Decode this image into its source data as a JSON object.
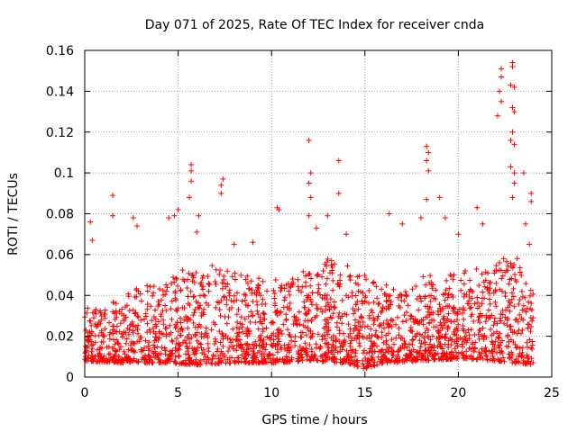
{
  "chart_data": {
    "type": "scatter",
    "title": "Day 071 of 2025, Rate Of TEC Index for receiver cnda",
    "xlabel": "GPS time / hours",
    "ylabel": "ROTI / TECUs",
    "xlim": [
      0,
      25
    ],
    "ylim": [
      0,
      0.16
    ],
    "x_ticks": [
      0,
      5,
      10,
      15,
      20,
      25
    ],
    "x_tick_labels": [
      "0",
      "5",
      "10",
      "15",
      "20",
      "25"
    ],
    "y_ticks": [
      0,
      0.02,
      0.04,
      0.06,
      0.08,
      0.1,
      0.12,
      0.14,
      0.16
    ],
    "y_tick_labels": [
      "0",
      "0.02",
      "0.04",
      "0.06",
      "0.08",
      "0.1",
      "0.12",
      "0.14",
      "0.16"
    ],
    "grid": true,
    "marker": "+",
    "series": [
      {
        "name": "ROTI",
        "color": "#ff0000",
        "note": "dense band of thousands of samples between 0 and 24 h; representative envelope and outliers listed",
        "band_lower": [
          [
            0,
            0.008
          ],
          [
            2,
            0.007
          ],
          [
            4,
            0.007
          ],
          [
            6,
            0.006
          ],
          [
            8,
            0.007
          ],
          [
            10,
            0.007
          ],
          [
            12,
            0.008
          ],
          [
            14,
            0.007
          ],
          [
            15,
            0.004
          ],
          [
            16,
            0.007
          ],
          [
            18,
            0.008
          ],
          [
            20,
            0.009
          ],
          [
            22,
            0.008
          ],
          [
            24,
            0.006
          ]
        ],
        "band_upper": [
          [
            0,
            0.035
          ],
          [
            1,
            0.033
          ],
          [
            2,
            0.04
          ],
          [
            3,
            0.045
          ],
          [
            4,
            0.048
          ],
          [
            5,
            0.052
          ],
          [
            6,
            0.055
          ],
          [
            7,
            0.056
          ],
          [
            8,
            0.052
          ],
          [
            9,
            0.05
          ],
          [
            10,
            0.048
          ],
          [
            11,
            0.05
          ],
          [
            12,
            0.055
          ],
          [
            13,
            0.058
          ],
          [
            14,
            0.055
          ],
          [
            15,
            0.05
          ],
          [
            16,
            0.046
          ],
          [
            17,
            0.04
          ],
          [
            18,
            0.052
          ],
          [
            19,
            0.05
          ],
          [
            20,
            0.052
          ],
          [
            21,
            0.055
          ],
          [
            22,
            0.058
          ],
          [
            23,
            0.062
          ],
          [
            24,
            0.045
          ]
        ],
        "outliers": [
          [
            0.3,
            0.076
          ],
          [
            0.4,
            0.067
          ],
          [
            1.5,
            0.089
          ],
          [
            1.5,
            0.079
          ],
          [
            2.6,
            0.078
          ],
          [
            2.8,
            0.074
          ],
          [
            4.5,
            0.078
          ],
          [
            4.8,
            0.079
          ],
          [
            5.0,
            0.082
          ],
          [
            5.7,
            0.104
          ],
          [
            5.7,
            0.101
          ],
          [
            5.7,
            0.096
          ],
          [
            5.6,
            0.088
          ],
          [
            6.1,
            0.079
          ],
          [
            6.0,
            0.071
          ],
          [
            7.4,
            0.097
          ],
          [
            7.3,
            0.094
          ],
          [
            7.3,
            0.09
          ],
          [
            8.0,
            0.065
          ],
          [
            9.0,
            0.066
          ],
          [
            10.3,
            0.083
          ],
          [
            10.4,
            0.082
          ],
          [
            12.0,
            0.116
          ],
          [
            12.1,
            0.1
          ],
          [
            12.0,
            0.095
          ],
          [
            12.1,
            0.088
          ],
          [
            12.0,
            0.079
          ],
          [
            12.4,
            0.073
          ],
          [
            13.0,
            0.079
          ],
          [
            13.6,
            0.106
          ],
          [
            13.6,
            0.09
          ],
          [
            14.0,
            0.07
          ],
          [
            16.3,
            0.08
          ],
          [
            17.0,
            0.075
          ],
          [
            18.3,
            0.113
          ],
          [
            18.4,
            0.11
          ],
          [
            18.3,
            0.106
          ],
          [
            18.4,
            0.101
          ],
          [
            18.3,
            0.087
          ],
          [
            18.0,
            0.078
          ],
          [
            19.0,
            0.088
          ],
          [
            19.3,
            0.078
          ],
          [
            20.0,
            0.07
          ],
          [
            21.0,
            0.083
          ],
          [
            21.3,
            0.075
          ],
          [
            22.3,
            0.151
          ],
          [
            22.3,
            0.147
          ],
          [
            22.2,
            0.14
          ],
          [
            22.3,
            0.135
          ],
          [
            22.1,
            0.128
          ],
          [
            22.9,
            0.154
          ],
          [
            22.9,
            0.152
          ],
          [
            22.8,
            0.143
          ],
          [
            23.0,
            0.142
          ],
          [
            22.9,
            0.132
          ],
          [
            23.0,
            0.13
          ],
          [
            22.9,
            0.12
          ],
          [
            22.8,
            0.116
          ],
          [
            23.0,
            0.114
          ],
          [
            22.8,
            0.103
          ],
          [
            23.0,
            0.1
          ],
          [
            23.0,
            0.095
          ],
          [
            22.9,
            0.088
          ],
          [
            23.5,
            0.1
          ],
          [
            23.9,
            0.09
          ],
          [
            23.9,
            0.086
          ],
          [
            23.6,
            0.075
          ],
          [
            23.8,
            0.065
          ]
        ]
      }
    ]
  }
}
